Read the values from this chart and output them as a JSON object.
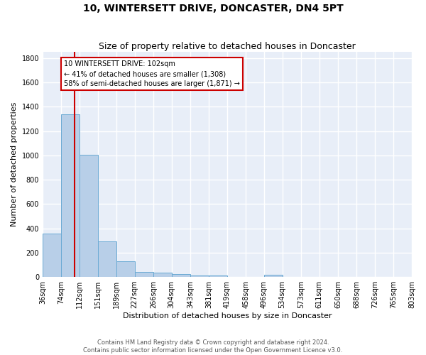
{
  "title": "10, WINTERSETT DRIVE, DONCASTER, DN4 5PT",
  "subtitle": "Size of property relative to detached houses in Doncaster",
  "xlabel": "Distribution of detached houses by size in Doncaster",
  "ylabel": "Number of detached properties",
  "bin_edges": [
    36,
    74,
    112,
    151,
    189,
    227,
    266,
    304,
    343,
    381,
    419,
    458,
    496,
    534,
    573,
    611,
    650,
    688,
    726,
    765,
    803
  ],
  "bar_heights": [
    355,
    1340,
    1005,
    290,
    130,
    40,
    35,
    25,
    15,
    10,
    0,
    0,
    20,
    0,
    0,
    0,
    0,
    0,
    0,
    0
  ],
  "bar_color": "#b8cfe8",
  "bar_edge_color": "#6aaad4",
  "vline_x": 102,
  "vline_color": "#cc0000",
  "annotation_text": "10 WINTERSETT DRIVE: 102sqm\n← 41% of detached houses are smaller (1,308)\n58% of semi-detached houses are larger (1,871) →",
  "annotation_box_color": "#ffffff",
  "annotation_box_edge": "#cc0000",
  "ylim": [
    0,
    1850
  ],
  "yticks": [
    0,
    200,
    400,
    600,
    800,
    1000,
    1200,
    1400,
    1600,
    1800
  ],
  "bg_color": "#e8eef8",
  "grid_color": "#ffffff",
  "footer_text": "Contains HM Land Registry data © Crown copyright and database right 2024.\nContains public sector information licensed under the Open Government Licence v3.0.",
  "title_fontsize": 10,
  "subtitle_fontsize": 9,
  "xlabel_fontsize": 8,
  "ylabel_fontsize": 8,
  "tick_fontsize": 7,
  "annotation_fontsize": 7,
  "footer_fontsize": 6
}
